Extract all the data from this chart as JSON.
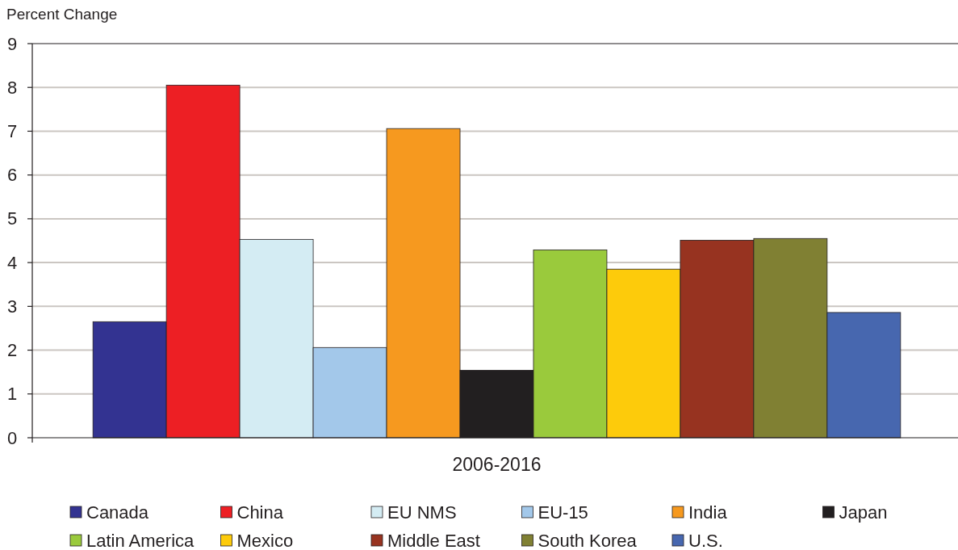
{
  "chart_data": {
    "type": "bar",
    "ylabel": "Percent Change",
    "categories": [
      "2006-2016"
    ],
    "series": [
      {
        "name": "Canada",
        "color": "#333391",
        "values": [
          2.65
        ]
      },
      {
        "name": "China",
        "color": "#ed1f24",
        "values": [
          8.05
        ]
      },
      {
        "name": "EU NMS",
        "color": "#d4ecf3",
        "values": [
          4.53
        ]
      },
      {
        "name": "EU-15",
        "color": "#a3c8ea",
        "values": [
          2.06
        ]
      },
      {
        "name": "India",
        "color": "#f6991f",
        "values": [
          7.06
        ]
      },
      {
        "name": "Japan",
        "color": "#221f20",
        "values": [
          1.54
        ]
      },
      {
        "name": "Latin America",
        "color": "#9aca3c",
        "values": [
          4.29
        ]
      },
      {
        "name": "Mexico",
        "color": "#fdcb0b",
        "values": [
          3.85
        ]
      },
      {
        "name": "Middle East",
        "color": "#973320",
        "values": [
          4.51
        ]
      },
      {
        "name": "South Korea",
        "color": "#808033",
        "values": [
          4.55
        ]
      },
      {
        "name": "U.S.",
        "color": "#4767af",
        "values": [
          2.86
        ]
      }
    ],
    "ylim": [
      0,
      9
    ],
    "yticks": [
      0,
      1,
      2,
      3,
      4,
      5,
      6,
      7,
      8,
      9
    ],
    "grid": "y",
    "legend": "bottom"
  }
}
